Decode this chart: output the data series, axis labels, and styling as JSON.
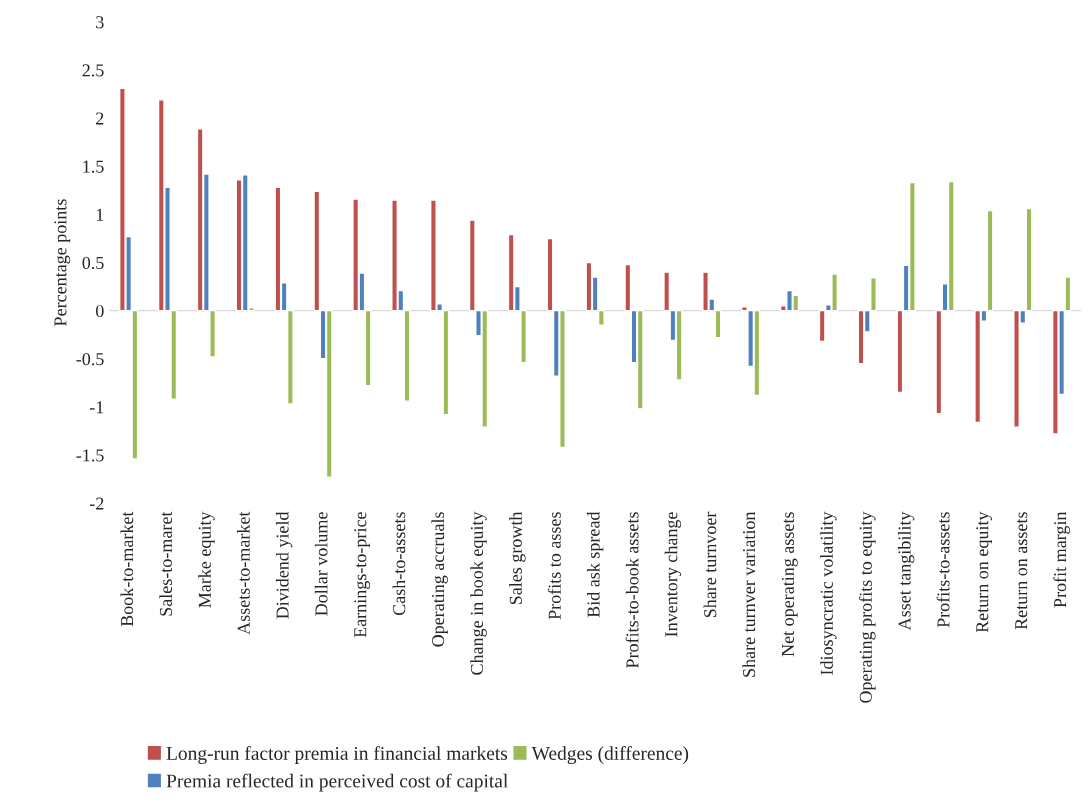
{
  "chart_data": {
    "type": "bar",
    "ylabel": "Percentage points",
    "categories": [
      "Book-to-market",
      "Sales-to-maret",
      "Marke equity",
      "Assets-to-market",
      "Dividend yield",
      "Dollar volume",
      "Earnings-to-price",
      "Cash-to-assets",
      "Operating accruals",
      "Change in book equity",
      "Sales growth",
      "Profits to asses",
      "Bid ask spread",
      "Profits-to-book assets",
      "Inventory change",
      "Share turnvoer",
      "Share turnver variation",
      "Net operating assets",
      "Idiosyncratic volatility",
      "Operating profits to equity",
      "Asset tangibility",
      "Profits-to-assets",
      "Return on equity",
      "Return on assets",
      "Profit margin"
    ],
    "series": [
      {
        "name": "Long-run factor premia in financial markets",
        "color": "#c0504d",
        "values": [
          2.31,
          2.19,
          1.89,
          1.36,
          1.28,
          1.24,
          1.16,
          1.15,
          1.15,
          0.94,
          0.79,
          0.75,
          0.5,
          0.48,
          0.4,
          0.4,
          0.04,
          0.05,
          -0.32,
          -0.55,
          -0.85,
          -1.07,
          -1.16,
          -1.21,
          -1.28
        ]
      },
      {
        "name": "Premia reflected in perceived cost of capital",
        "color": "#4f81bd",
        "values": [
          0.77,
          1.28,
          1.42,
          1.41,
          0.29,
          -0.5,
          0.39,
          0.21,
          0.07,
          -0.26,
          0.25,
          -0.68,
          0.35,
          -0.54,
          -0.31,
          0.12,
          -0.58,
          0.21,
          0.06,
          -0.22,
          0.47,
          0.28,
          -0.11,
          -0.13,
          -0.87
        ]
      },
      {
        "name": "Wedges (difference)",
        "color": "#9bbb59",
        "values": [
          -1.54,
          -0.92,
          -0.48,
          0.03,
          -0.97,
          -1.73,
          -0.78,
          -0.94,
          -1.08,
          -1.21,
          -0.54,
          -1.42,
          -0.15,
          -1.02,
          -0.72,
          -0.28,
          -0.88,
          0.16,
          0.38,
          0.34,
          1.33,
          1.34,
          1.04,
          1.06,
          0.35
        ]
      }
    ],
    "ylim": [
      -2,
      3
    ],
    "yticks": [
      -2,
      -1.5,
      -1,
      -0.5,
      0,
      0.5,
      1,
      1.5,
      2,
      2.5,
      3
    ],
    "ref_lines": [
      {
        "axis": "y",
        "value": 0,
        "color": "#d9d9d9"
      }
    ],
    "grid": false,
    "legend": "bottom"
  }
}
